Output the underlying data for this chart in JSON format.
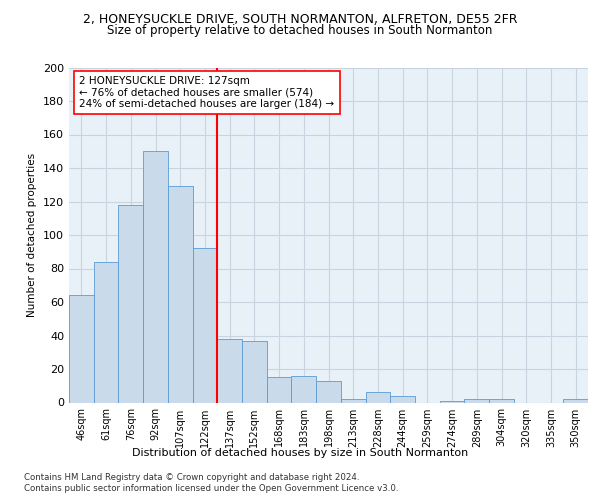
{
  "title1": "2, HONEYSUCKLE DRIVE, SOUTH NORMANTON, ALFRETON, DE55 2FR",
  "title2": "Size of property relative to detached houses in South Normanton",
  "xlabel": "Distribution of detached houses by size in South Normanton",
  "ylabel": "Number of detached properties",
  "bar_labels": [
    "46sqm",
    "61sqm",
    "76sqm",
    "92sqm",
    "107sqm",
    "122sqm",
    "137sqm",
    "152sqm",
    "168sqm",
    "183sqm",
    "198sqm",
    "213sqm",
    "228sqm",
    "244sqm",
    "259sqm",
    "274sqm",
    "289sqm",
    "304sqm",
    "320sqm",
    "335sqm",
    "350sqm"
  ],
  "bar_values": [
    64,
    84,
    118,
    150,
    129,
    92,
    38,
    37,
    15,
    16,
    13,
    2,
    6,
    4,
    0,
    1,
    2,
    2,
    0,
    0,
    2
  ],
  "bar_color": "#c9daea",
  "bar_edgecolor": "#5b9bd5",
  "background_color": "#e8f0f8",
  "grid_color": "#c8d4e0",
  "vline_color": "red",
  "annotation_text": "2 HONEYSUCKLE DRIVE: 127sqm\n← 76% of detached houses are smaller (574)\n24% of semi-detached houses are larger (184) →",
  "annotation_box_color": "white",
  "annotation_box_edgecolor": "red",
  "ylim": [
    0,
    200
  ],
  "yticks": [
    0,
    20,
    40,
    60,
    80,
    100,
    120,
    140,
    160,
    180,
    200
  ],
  "footnote1": "Contains HM Land Registry data © Crown copyright and database right 2024.",
  "footnote2": "Contains public sector information licensed under the Open Government Licence v3.0."
}
